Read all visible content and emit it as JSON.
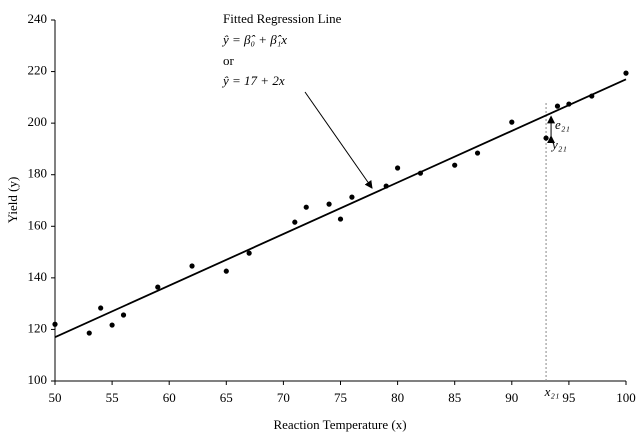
{
  "chart_data": {
    "type": "scatter",
    "xlabel": "Reaction Temperature (x)",
    "ylabel": "Yield (y)",
    "x": [
      50,
      53,
      54,
      55,
      56,
      59,
      62,
      65,
      67,
      71,
      72,
      74,
      75,
      76,
      79,
      80,
      82,
      85,
      87,
      90,
      93,
      94,
      95,
      97,
      100
    ],
    "values": [
      122,
      118.6,
      128.3,
      121.7,
      125.6,
      136.4,
      144.6,
      142.6,
      149.6,
      161.6,
      167.4,
      168.6,
      162.8,
      171.3,
      175.6,
      182.6,
      180.6,
      183.7,
      188.4,
      200.4,
      194.2,
      206.6,
      207.4,
      210.5,
      219.4
    ],
    "color": "#000000",
    "fit": {
      "name": "Fitted Regression Line",
      "x": [
        50,
        100
      ],
      "values": [
        117,
        217
      ],
      "color": "#000000"
    },
    "equation": [
      "ŷ = β̂₀ + β̂₁x",
      "or",
      "ŷ = 17 + 2x"
    ],
    "reference": {
      "x": 93,
      "label": "x₂₁",
      "residual_label": "e₂₁",
      "point_label": "y₂₁"
    },
    "xlim": [
      50,
      100
    ],
    "ylim": [
      100,
      240
    ],
    "xticks": [
      50,
      55,
      60,
      65,
      70,
      75,
      80,
      85,
      90,
      95,
      100
    ],
    "yticks": [
      100,
      120,
      140,
      160,
      180,
      200,
      220,
      240
    ]
  }
}
